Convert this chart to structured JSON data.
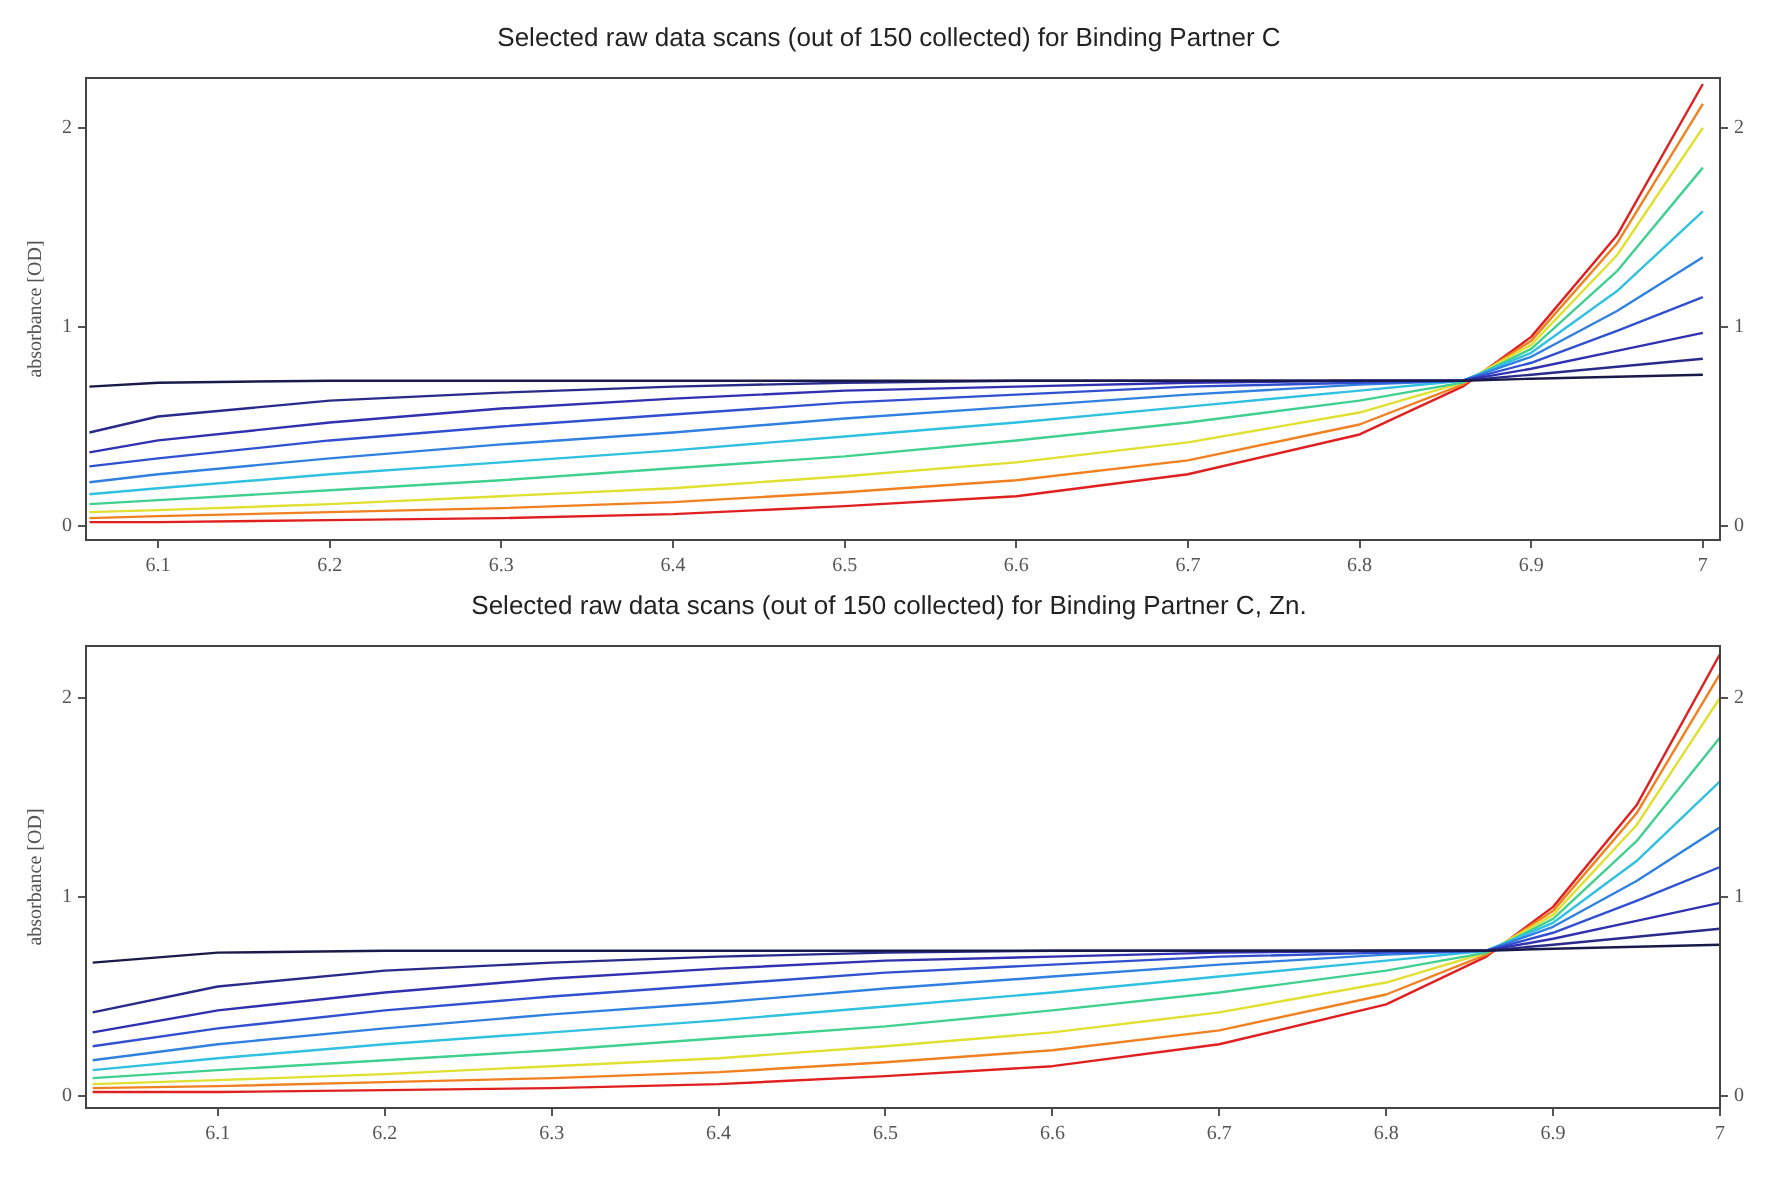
{
  "chart_data": [
    {
      "type": "line",
      "title": "Selected raw data scans (out of 150 collected) for Binding Partner C",
      "ylabel": "absorbance [OD]",
      "xlim": [
        6.058,
        7.01
      ],
      "xticks": [
        6.1,
        6.2,
        6.3,
        6.4,
        6.5,
        6.6,
        6.7,
        6.8,
        6.9,
        7
      ],
      "ylim": [
        -0.07,
        2.25
      ],
      "yticks": [
        0,
        1,
        2
      ],
      "y2lim": [
        -0.07,
        2.25
      ],
      "y2ticks": [
        0,
        1,
        2
      ],
      "grid": false,
      "legend": false,
      "marker": "none",
      "line_style": "solid",
      "x": [
        6.06,
        6.1,
        6.2,
        6.3,
        6.4,
        6.5,
        6.6,
        6.7,
        6.8,
        6.86,
        6.9,
        6.95,
        7.0
      ],
      "series": [
        {
          "color": "#1a1a4a",
          "values": [
            0.7,
            0.72,
            0.73,
            0.73,
            0.73,
            0.73,
            0.73,
            0.73,
            0.73,
            0.73,
            0.74,
            0.75,
            0.76
          ]
        },
        {
          "color": "#2a2a8a",
          "values": [
            0.47,
            0.55,
            0.63,
            0.67,
            0.7,
            0.72,
            0.73,
            0.73,
            0.73,
            0.73,
            0.76,
            0.8,
            0.84
          ]
        },
        {
          "color": "#3030b0",
          "values": [
            0.37,
            0.43,
            0.52,
            0.59,
            0.64,
            0.68,
            0.7,
            0.72,
            0.73,
            0.73,
            0.79,
            0.88,
            0.97
          ]
        },
        {
          "color": "#3050d0",
          "values": [
            0.3,
            0.34,
            0.43,
            0.5,
            0.56,
            0.62,
            0.66,
            0.7,
            0.72,
            0.73,
            0.82,
            0.98,
            1.15
          ]
        },
        {
          "color": "#3080e0",
          "values": [
            0.22,
            0.26,
            0.34,
            0.41,
            0.47,
            0.54,
            0.6,
            0.66,
            0.71,
            0.73,
            0.85,
            1.08,
            1.35
          ]
        },
        {
          "color": "#30c0e0",
          "values": [
            0.16,
            0.19,
            0.26,
            0.32,
            0.38,
            0.45,
            0.52,
            0.6,
            0.68,
            0.73,
            0.87,
            1.18,
            1.58
          ]
        },
        {
          "color": "#40d090",
          "values": [
            0.11,
            0.13,
            0.18,
            0.23,
            0.29,
            0.35,
            0.43,
            0.52,
            0.63,
            0.72,
            0.89,
            1.28,
            1.8
          ]
        },
        {
          "color": "#e0e030",
          "values": [
            0.07,
            0.08,
            0.11,
            0.15,
            0.19,
            0.25,
            0.32,
            0.42,
            0.57,
            0.72,
            0.91,
            1.36,
            2.0
          ]
        },
        {
          "color": "#f08020",
          "values": [
            0.04,
            0.05,
            0.07,
            0.09,
            0.12,
            0.17,
            0.23,
            0.33,
            0.51,
            0.71,
            0.93,
            1.42,
            2.12
          ]
        },
        {
          "color": "#e02020",
          "values": [
            0.02,
            0.02,
            0.03,
            0.04,
            0.06,
            0.1,
            0.15,
            0.26,
            0.46,
            0.7,
            0.95,
            1.46,
            2.22
          ]
        }
      ]
    },
    {
      "type": "line",
      "title": "Selected raw data scans (out of 150 collected) for Binding Partner C, Zn.",
      "ylabel": "absorbance [OD]",
      "xlim": [
        6.021,
        7.0
      ],
      "xticks": [
        6.1,
        6.2,
        6.3,
        6.4,
        6.5,
        6.6,
        6.7,
        6.8,
        6.9,
        7
      ],
      "ylim": [
        -0.06,
        2.26
      ],
      "yticks": [
        0,
        1,
        2
      ],
      "y2lim": [
        -0.06,
        2.26
      ],
      "y2ticks": [
        0,
        1,
        2
      ],
      "grid": false,
      "legend": false,
      "marker": "none",
      "line_style": "solid",
      "x": [
        6.025,
        6.1,
        6.2,
        6.3,
        6.4,
        6.5,
        6.6,
        6.7,
        6.8,
        6.86,
        6.9,
        6.95,
        7.0
      ],
      "series": [
        {
          "color": "#1a1a4a",
          "values": [
            0.67,
            0.72,
            0.73,
            0.73,
            0.73,
            0.73,
            0.73,
            0.73,
            0.73,
            0.73,
            0.74,
            0.75,
            0.76
          ]
        },
        {
          "color": "#2a2a8a",
          "values": [
            0.42,
            0.55,
            0.63,
            0.67,
            0.7,
            0.72,
            0.73,
            0.73,
            0.73,
            0.73,
            0.76,
            0.8,
            0.84
          ]
        },
        {
          "color": "#3030b0",
          "values": [
            0.32,
            0.43,
            0.52,
            0.59,
            0.64,
            0.68,
            0.7,
            0.72,
            0.73,
            0.73,
            0.79,
            0.88,
            0.97
          ]
        },
        {
          "color": "#3050d0",
          "values": [
            0.25,
            0.34,
            0.43,
            0.5,
            0.56,
            0.62,
            0.66,
            0.7,
            0.72,
            0.73,
            0.82,
            0.98,
            1.15
          ]
        },
        {
          "color": "#3080e0",
          "values": [
            0.18,
            0.26,
            0.34,
            0.41,
            0.47,
            0.54,
            0.6,
            0.66,
            0.71,
            0.73,
            0.85,
            1.08,
            1.35
          ]
        },
        {
          "color": "#30c0e0",
          "values": [
            0.13,
            0.19,
            0.26,
            0.32,
            0.38,
            0.45,
            0.52,
            0.6,
            0.68,
            0.73,
            0.87,
            1.18,
            1.58
          ]
        },
        {
          "color": "#40d090",
          "values": [
            0.09,
            0.13,
            0.18,
            0.23,
            0.29,
            0.35,
            0.43,
            0.52,
            0.63,
            0.72,
            0.89,
            1.28,
            1.8
          ]
        },
        {
          "color": "#e0e030",
          "values": [
            0.06,
            0.08,
            0.11,
            0.15,
            0.19,
            0.25,
            0.32,
            0.42,
            0.57,
            0.72,
            0.91,
            1.36,
            2.0
          ]
        },
        {
          "color": "#f08020",
          "values": [
            0.04,
            0.05,
            0.07,
            0.09,
            0.12,
            0.17,
            0.23,
            0.33,
            0.51,
            0.71,
            0.93,
            1.42,
            2.12
          ]
        },
        {
          "color": "#e02020",
          "values": [
            0.02,
            0.02,
            0.03,
            0.04,
            0.06,
            0.1,
            0.15,
            0.26,
            0.46,
            0.7,
            0.95,
            1.46,
            2.22
          ]
        }
      ]
    }
  ]
}
